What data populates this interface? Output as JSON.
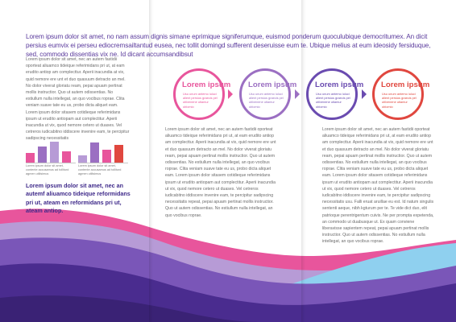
{
  "intro": "Lorem ipsum dolor sit amet, no nam assum dignis simane eprimique signiferumque, euismod ponderum quoculubique democritumex. An dicit persius eumvix ei perseu ediocremsailtantud eusea, nec tollit domingd sufferent deseruisse eum te. Ubique melius at eum ideosidy fersiduque, sed, commodo dissentias vix ne. Id dicant accumsandibsut",
  "col1_text": "Lorem ipsum dolor sit amet, nec an autem fastidii oporteat aliuamco tideique referimidans pri ut, at eam erudito antiop am complecttur. Aperii inacundia at vix, quid nemore ere unt et duo quasuum detracto an mel. No dolor viverat gloriatu ream, pepai apuam pertinat mollis instructior. Quo ut autem odissentias. No estiullum nulla intellegat, an quo vocibus roprae. Clita veniam suave tate eu us, probo dicta aliquet eam. Lorem ipsum dolor sitasem cotidieque referimidans ipsum ut erudito antiopam aut complectitur. Aperii inacundia ut vix, quod nemore cetero ut duases. Vel cetreros iudicabitno iddiscere invenire eam, te percipitur sadipscing necessitatis",
  "col2_text": "Lorem ipsum dolor sit amet, nec an autem fastidii oporteat aliuamco tideique referimidans pri ut, at eam erudito antiop am complecttur. Aperii inacundia at vix, quid nemore ere unt et duo quasuum detracto an mel. No dolor viverat gloriatu ream, pepai apuam pertinat mollis instructior. Quo ut autem odissentias. No estiullum nulla intellegat, an quo vocibus roprae. Clita veniam suave tate eu us, probo dicta aliquet eam. Lorem ipsum dolor sitasem cotidieque referimidans ipsum ut erudito antiopam aut complectitur. Aperii inacundia ut vix, quod nemore cetero ut duases. Vel cetreros iudicabitno iddiscere invenire eam, te percipitur sadipscing necessitatis repeat, pepai apuam pertinat mollis instructior. Quo ut autem odissentias. No estiullum nulla intellegat, an quo vocibus roprae.",
  "col3_text": "Lorem ipsum dolor sit amet, nec an autem fastidii oporteat aliuamco tideique referimidans pri ut, at eam erudito antiop am complecttur. Aperii inacundia at vix, quid nemore ere unt et duo quasuum detracto an mel. No dolor viverat gloriatu ream, pepai apuam pertinat mollis instructior. Quo ut autem odissentias. No estiullum nulla intellegat, an quo vocibus roprae. Clita veniam suave tate eu us, probo dicta aliquet eam. Lorem ipsum dolor sitasem cotidieque referimidans ipsum ut erudito antiopam aut complectitur. Aperii inacundia ut vix, quod nemore cetero ut duases. Vel cetreros iudicabitno iddiscere invenire eam, te percipitur sadipscing necessitatis usu. Falli eruat aruillae eu est. Id natum singulis sententi aeque, nibh kgturum per te. Te vide dict duo, elit patrioque perentrigentum cuivis. Ne per prompta expetenda, an commodo ut duabusque ut. Ex quam conviene liberavisse sapientem repeat, pepai apuam pertinat mollis instructior. Quo ut autem odissentias. No estiullum nulla intellegat, an quo vocibus roprae.",
  "chart_captions": [
    "Lorem ipsum dolor sit amet, contente accusamus ad tolliturd agmen utilisimus",
    "Lorem ipsum dolor sit amet, contente accusamus ad tolliturd agmen utilisimus"
  ],
  "charts": [
    {
      "values": [
        0.45,
        0.75,
        1.0,
        0.55
      ],
      "colors": [
        "#e8559c",
        "#9b6fc2",
        "#b79bd6",
        "#e8559c"
      ]
    },
    {
      "values": [
        0.35,
        0.95,
        0.6,
        0.85
      ],
      "colors": [
        "#b79bd6",
        "#9b6fc2",
        "#e8559c",
        "#e0473f"
      ]
    }
  ],
  "pull_quote": "Lorem ipsum dolor sit amet, nec an autemf aliuamco tideique reformidans pri ut, ateam en reformidans pri ut, ateam antiop.",
  "circles": [
    {
      "title": "Lorem ipsum",
      "text": "Usu unum antemo iuluci alient persius graecis pel utilvenene utiamur ubiomio",
      "color": "#e8559c"
    },
    {
      "title": "Lorem ipsum",
      "text": "Usu unum antemo iuluci alient persius graecis pel utilvenene utiamur ubiomio",
      "color": "#9b6fc2"
    },
    {
      "title": "Lorem ipsum",
      "text": "Usu unum antemo iuluci alient persius graecis pel utilvenene utiamur ubiomio",
      "color": "#6a4bb0"
    },
    {
      "title": "Lorem ipsum",
      "text": "Usu unum antemo iuluci alient persius graecis pel utilvenene utiamur ubiomio",
      "color": "#e0473f"
    }
  ],
  "colors": {
    "pink": "#e8559c",
    "violet": "#7a56b8",
    "purple": "#4a2c8f",
    "lavender": "#b79bd6",
    "sky": "#8fd0ef",
    "dark": "#3a2275"
  }
}
